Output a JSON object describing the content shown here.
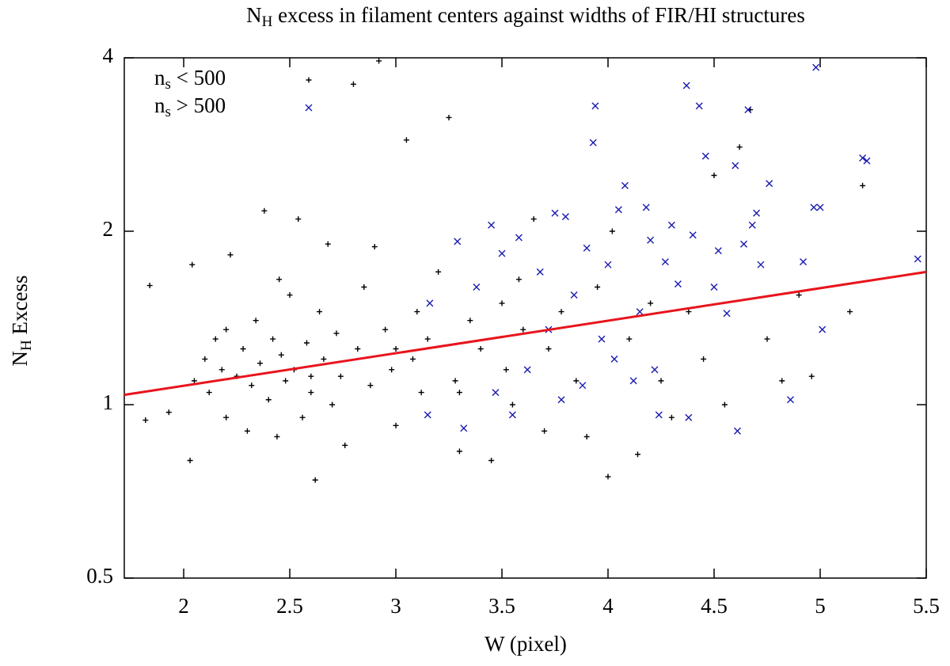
{
  "chart_data": {
    "type": "scatter",
    "title": {
      "base": "N",
      "sub": "H",
      "rest": " excess in filament centers against widths of FIR/HI structures"
    },
    "x_label": "W (pixel)",
    "y_label": {
      "base": "N",
      "sub": "H",
      "rest": " Excess"
    },
    "xlim": [
      1.72,
      5.5
    ],
    "xticks": [
      2,
      2.5,
      3,
      3.5,
      4,
      4.5,
      5,
      5.5
    ],
    "ylim": [
      0.5,
      4
    ],
    "yticks": [
      0.5,
      1,
      2,
      4
    ],
    "ylog": true,
    "legend": "top-left",
    "series": [
      {
        "name": {
          "base": "n",
          "sub": "s",
          "rest": " < 500"
        },
        "color": "#000000",
        "marker": "plus",
        "x": [
          1.84,
          1.82,
          1.93,
          2.03,
          2.04,
          2.05,
          2.1,
          2.12,
          2.15,
          2.18,
          2.2,
          2.22,
          2.25,
          2.28,
          2.3,
          2.32,
          2.34,
          2.36,
          2.38,
          2.4,
          2.42,
          2.44,
          2.46,
          2.48,
          2.5,
          2.52,
          2.54,
          2.56,
          2.58,
          2.6,
          2.62,
          2.64,
          2.66,
          2.68,
          2.7,
          2.72,
          2.74,
          2.76,
          2.8,
          2.82,
          2.85,
          2.88,
          2.92,
          2.95,
          2.98,
          3.0,
          3.05,
          3.08,
          3.1,
          3.12,
          3.15,
          3.2,
          3.25,
          3.28,
          3.3,
          3.35,
          3.4,
          3.45,
          3.5,
          3.52,
          3.55,
          3.6,
          3.65,
          3.7,
          3.72,
          3.78,
          3.85,
          3.9,
          3.95,
          4.0,
          4.02,
          4.1,
          4.14,
          4.2,
          4.25,
          4.3,
          4.38,
          4.45,
          4.5,
          4.55,
          4.62,
          4.67,
          4.75,
          4.82,
          4.9,
          4.96,
          5.14,
          5.2,
          3.58,
          2.9,
          3.0,
          2.2,
          2.45,
          2.6,
          3.3
        ],
        "values": [
          1.61,
          0.94,
          0.97,
          0.8,
          1.75,
          1.1,
          1.2,
          1.05,
          1.3,
          1.15,
          0.95,
          1.82,
          1.12,
          1.25,
          0.9,
          1.08,
          1.4,
          1.18,
          2.17,
          1.02,
          1.3,
          0.88,
          1.22,
          1.1,
          1.55,
          1.15,
          2.1,
          0.95,
          1.28,
          1.05,
          0.74,
          1.45,
          1.2,
          1.9,
          1.0,
          1.33,
          1.12,
          0.85,
          3.6,
          1.25,
          1.6,
          1.08,
          3.95,
          1.35,
          1.15,
          0.92,
          2.88,
          1.2,
          1.45,
          1.05,
          1.3,
          1.7,
          3.15,
          1.1,
          0.83,
          1.4,
          1.25,
          0.8,
          1.5,
          1.15,
          1.0,
          1.35,
          2.1,
          0.9,
          1.25,
          1.45,
          1.1,
          0.88,
          1.6,
          0.75,
          2.0,
          1.3,
          0.82,
          1.5,
          1.1,
          0.95,
          1.45,
          1.2,
          2.5,
          1.0,
          2.8,
          3.25,
          1.3,
          1.1,
          1.55,
          1.12,
          1.45,
          2.4,
          1.65,
          1.88,
          1.25,
          1.35,
          1.65,
          1.12,
          1.05
        ]
      },
      {
        "name": {
          "base": "n",
          "sub": "s",
          "rest": " > 500"
        },
        "color": "#1a1ab0",
        "marker": "cross",
        "x": [
          3.16,
          3.15,
          3.29,
          3.32,
          3.38,
          3.45,
          3.47,
          3.5,
          3.55,
          3.58,
          3.62,
          3.68,
          3.72,
          3.75,
          3.78,
          3.8,
          3.84,
          3.88,
          3.9,
          3.93,
          3.94,
          3.97,
          4.0,
          4.03,
          4.05,
          4.08,
          4.12,
          4.15,
          4.18,
          4.2,
          4.22,
          4.24,
          4.27,
          4.3,
          4.33,
          4.37,
          4.38,
          4.4,
          4.43,
          4.46,
          4.5,
          4.52,
          4.56,
          4.6,
          4.61,
          4.64,
          4.66,
          4.68,
          4.7,
          4.72,
          4.76,
          4.86,
          4.92,
          4.97,
          4.98,
          5.0,
          5.01,
          5.2,
          5.22,
          5.46
        ],
        "values": [
          1.5,
          0.96,
          1.92,
          0.91,
          1.6,
          2.05,
          1.05,
          1.83,
          0.96,
          1.95,
          1.15,
          1.7,
          1.35,
          2.15,
          1.02,
          2.12,
          1.55,
          1.08,
          1.87,
          2.85,
          3.3,
          1.3,
          1.75,
          1.2,
          2.18,
          2.4,
          1.1,
          1.45,
          2.2,
          1.93,
          1.15,
          0.96,
          1.77,
          2.05,
          1.62,
          3.58,
          0.95,
          1.97,
          3.3,
          2.7,
          1.6,
          1.85,
          1.44,
          2.6,
          0.9,
          1.9,
          3.25,
          2.05,
          2.15,
          1.75,
          2.42,
          1.02,
          1.77,
          2.2,
          3.85,
          2.2,
          1.35,
          2.68,
          2.65,
          1.79
        ]
      }
    ],
    "fit": {
      "color": "#e8141c",
      "x": [
        1.72,
        5.5
      ],
      "values": [
        1.04,
        1.7
      ]
    }
  }
}
